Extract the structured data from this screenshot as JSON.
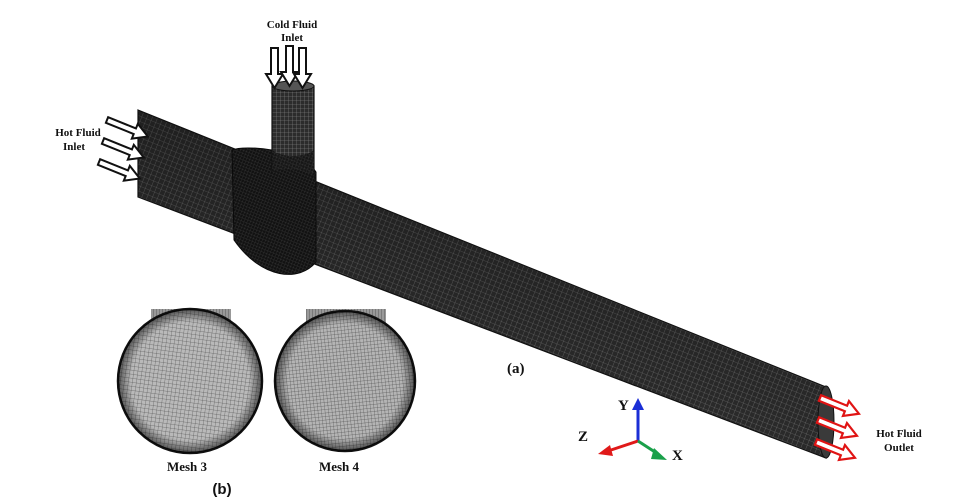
{
  "labels": {
    "cold_inlet_line1": "Cold Fluid",
    "cold_inlet_line2": "Inlet",
    "hot_inlet_line1": "Hot Fluid",
    "hot_inlet_line2": "Inlet",
    "hot_outlet_line1": "Hot Fluid",
    "hot_outlet_line2": "Outlet",
    "panel_a": "(a)",
    "panel_b": "(b)",
    "mesh3": "Mesh  3",
    "mesh4": "Mesh 4"
  },
  "axes": {
    "x": "X",
    "y": "Y",
    "z": "Z",
    "x_color": "#1aa04a",
    "y_color": "#1b2fd6",
    "z_color": "#e01919"
  },
  "colors": {
    "mesh_dark": "#1a1a1a",
    "mesh_line": "#6b6b6b",
    "outlet_arrow": "#e01414",
    "inlet_arrow": "#111111"
  }
}
